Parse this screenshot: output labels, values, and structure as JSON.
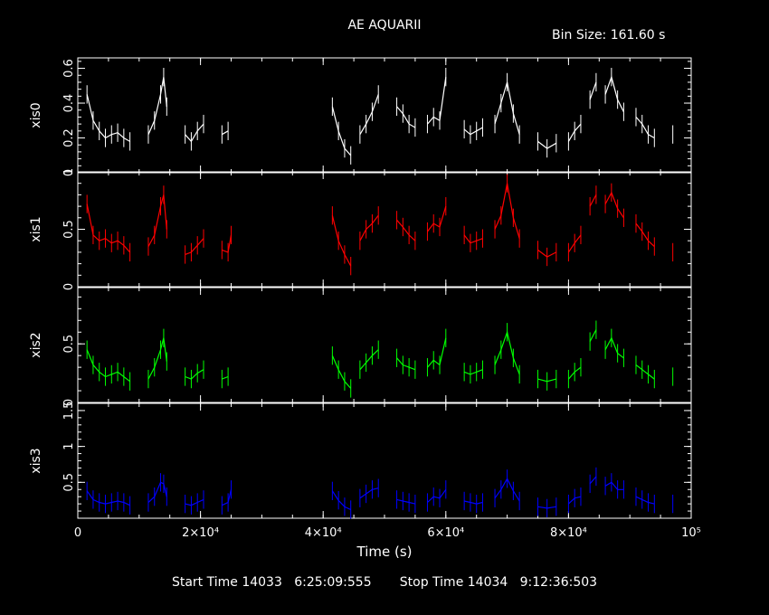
{
  "header": {
    "title": "AE AQUARII",
    "bin_size": "Bin Size: 161.60 s"
  },
  "footer": {
    "start_label": "Start Time",
    "start_value": "14033   6:25:09:555",
    "stop_label": "Stop Time",
    "stop_value": "14034   9:12:36:503"
  },
  "chart_data": {
    "type": "line",
    "title": "AE AQUARII",
    "xlabel": "Time (s)",
    "xlim": [
      0,
      100000
    ],
    "x_ticks": [
      0,
      20000,
      40000,
      60000,
      80000,
      100000
    ],
    "x_tick_labels": [
      "0",
      "2×10⁴",
      "4×10⁴",
      "6×10⁴",
      "8×10⁴",
      "10⁵"
    ],
    "grid": false,
    "panels": [
      {
        "name": "xis0",
        "color": "#ffffff",
        "ylim": [
          0,
          0.66
        ],
        "y_ticks": [
          0,
          0.2,
          0.4,
          0.6
        ],
        "y_tick_labels": [
          "0",
          "0.2",
          "0.4",
          "0.6"
        ],
        "segments": [
          {
            "x": [
              1500,
              2500,
              3500,
              4500,
              5500,
              6500,
              7500,
              8500
            ],
            "y": [
              0.45,
              0.3,
              0.24,
              0.2,
              0.22,
              0.23,
              0.2,
              0.18
            ]
          },
          {
            "x": [
              11500,
              12500,
              13500,
              14000,
              14500
            ],
            "y": [
              0.22,
              0.3,
              0.45,
              0.55,
              0.38
            ]
          },
          {
            "x": [
              17500,
              18500,
              19500,
              20500
            ],
            "y": [
              0.22,
              0.18,
              0.24,
              0.28
            ]
          },
          {
            "x": [
              23500,
              24500
            ],
            "y": [
              0.22,
              0.24
            ]
          },
          {
            "x": [
              41500,
              42500,
              43500,
              44500
            ],
            "y": [
              0.38,
              0.24,
              0.14,
              0.1
            ]
          },
          {
            "x": [
              46000,
              47000,
              48000,
              49000
            ],
            "y": [
              0.22,
              0.28,
              0.35,
              0.45
            ]
          },
          {
            "x": [
              52000,
              53000,
              54000,
              55000
            ],
            "y": [
              0.38,
              0.34,
              0.28,
              0.26
            ]
          },
          {
            "x": [
              57000,
              58000,
              59000,
              60000
            ],
            "y": [
              0.28,
              0.32,
              0.3,
              0.55
            ]
          },
          {
            "x": [
              63000,
              64000,
              65000,
              66000
            ],
            "y": [
              0.25,
              0.22,
              0.24,
              0.26
            ]
          },
          {
            "x": [
              68000,
              69000,
              70000,
              71000,
              72000
            ],
            "y": [
              0.28,
              0.4,
              0.52,
              0.34,
              0.22
            ]
          },
          {
            "x": [
              75000,
              76500,
              78000
            ],
            "y": [
              0.18,
              0.14,
              0.17
            ]
          },
          {
            "x": [
              80000,
              81000,
              82000
            ],
            "y": [
              0.18,
              0.24,
              0.28
            ]
          },
          {
            "x": [
              83500,
              84500
            ],
            "y": [
              0.42,
              0.52
            ]
          },
          {
            "x": [
              86000,
              87000,
              88000,
              89000
            ],
            "y": [
              0.45,
              0.55,
              0.42,
              0.35
            ]
          },
          {
            "x": [
              91000,
              92000,
              93000,
              94000
            ],
            "y": [
              0.32,
              0.28,
              0.22,
              0.2
            ]
          },
          {
            "x": [
              97000
            ],
            "y": [
              0.22
            ]
          }
        ]
      },
      {
        "name": "xis1",
        "color": "#ff0000",
        "ylim": [
          0,
          1.0
        ],
        "y_ticks": [
          0,
          0.5,
          1
        ],
        "y_tick_labels": [
          "0",
          "0.5",
          "1"
        ],
        "segments": [
          {
            "x": [
              1500,
              2500,
              3500,
              4500,
              5500,
              6500,
              7500,
              8500
            ],
            "y": [
              0.72,
              0.45,
              0.4,
              0.42,
              0.38,
              0.4,
              0.36,
              0.3
            ]
          },
          {
            "x": [
              11500,
              12500,
              13500,
              14000,
              14500
            ],
            "y": [
              0.35,
              0.45,
              0.7,
              0.8,
              0.5
            ]
          },
          {
            "x": [
              17500,
              18500,
              19500,
              20500
            ],
            "y": [
              0.28,
              0.3,
              0.36,
              0.42
            ]
          },
          {
            "x": [
              23500,
              24500,
              25000
            ],
            "y": [
              0.32,
              0.3,
              0.45
            ]
          },
          {
            "x": [
              41500,
              42500,
              43500,
              44500
            ],
            "y": [
              0.62,
              0.4,
              0.28,
              0.18
            ]
          },
          {
            "x": [
              46000,
              47000,
              48000,
              49000
            ],
            "y": [
              0.4,
              0.5,
              0.55,
              0.62
            ]
          },
          {
            "x": [
              52000,
              53000,
              54000,
              55000
            ],
            "y": [
              0.58,
              0.52,
              0.45,
              0.4
            ]
          },
          {
            "x": [
              57000,
              58000,
              59000,
              60000
            ],
            "y": [
              0.48,
              0.55,
              0.52,
              0.7
            ]
          },
          {
            "x": [
              63000,
              64000,
              65000,
              66000
            ],
            "y": [
              0.45,
              0.38,
              0.4,
              0.42
            ]
          },
          {
            "x": [
              68000,
              69000,
              70000,
              71000,
              72000
            ],
            "y": [
              0.5,
              0.62,
              0.9,
              0.6,
              0.42
            ]
          },
          {
            "x": [
              75000,
              76500,
              78000
            ],
            "y": [
              0.32,
              0.26,
              0.3
            ]
          },
          {
            "x": [
              80000,
              81000,
              82000
            ],
            "y": [
              0.3,
              0.38,
              0.45
            ]
          },
          {
            "x": [
              83500,
              84500
            ],
            "y": [
              0.7,
              0.8
            ]
          },
          {
            "x": [
              86000,
              87000,
              88000,
              89000
            ],
            "y": [
              0.72,
              0.82,
              0.68,
              0.6
            ]
          },
          {
            "x": [
              91000,
              92000,
              93000,
              94000
            ],
            "y": [
              0.55,
              0.48,
              0.4,
              0.35
            ]
          },
          {
            "x": [
              97000
            ],
            "y": [
              0.3
            ]
          }
        ]
      },
      {
        "name": "xis2",
        "color": "#00ff00",
        "ylim": [
          0,
          0.98
        ],
        "y_ticks": [
          0,
          0.5
        ],
        "y_tick_labels": [
          "0",
          "0.5"
        ],
        "segments": [
          {
            "x": [
              1500,
              2500,
              3500,
              4500,
              5500,
              6500,
              7500,
              8500
            ],
            "y": [
              0.45,
              0.32,
              0.26,
              0.22,
              0.24,
              0.26,
              0.22,
              0.18
            ]
          },
          {
            "x": [
              11500,
              12500,
              13500,
              14000,
              14500
            ],
            "y": [
              0.2,
              0.3,
              0.45,
              0.55,
              0.35
            ]
          },
          {
            "x": [
              17500,
              18500,
              19500,
              20500
            ],
            "y": [
              0.22,
              0.2,
              0.25,
              0.28
            ]
          },
          {
            "x": [
              23500,
              24500
            ],
            "y": [
              0.2,
              0.22
            ]
          },
          {
            "x": [
              41500,
              42500,
              43500,
              44500
            ],
            "y": [
              0.4,
              0.28,
              0.18,
              0.12
            ]
          },
          {
            "x": [
              46000,
              47000,
              48000,
              49000
            ],
            "y": [
              0.28,
              0.34,
              0.4,
              0.45
            ]
          },
          {
            "x": [
              52000,
              53000,
              54000,
              55000
            ],
            "y": [
              0.38,
              0.32,
              0.3,
              0.28
            ]
          },
          {
            "x": [
              57000,
              58000,
              59000,
              60000
            ],
            "y": [
              0.3,
              0.36,
              0.32,
              0.55
            ]
          },
          {
            "x": [
              63000,
              64000,
              65000,
              66000
            ],
            "y": [
              0.26,
              0.24,
              0.26,
              0.28
            ]
          },
          {
            "x": [
              68000,
              69000,
              70000,
              71000,
              72000
            ],
            "y": [
              0.32,
              0.45,
              0.6,
              0.38,
              0.24
            ]
          },
          {
            "x": [
              75000,
              76500,
              78000
            ],
            "y": [
              0.2,
              0.18,
              0.2
            ]
          },
          {
            "x": [
              80000,
              81000,
              82000
            ],
            "y": [
              0.2,
              0.26,
              0.3
            ]
          },
          {
            "x": [
              83500,
              84500
            ],
            "y": [
              0.52,
              0.62
            ]
          },
          {
            "x": [
              86000,
              87000,
              88000,
              89000
            ],
            "y": [
              0.45,
              0.55,
              0.42,
              0.38
            ]
          },
          {
            "x": [
              91000,
              92000,
              93000,
              94000
            ],
            "y": [
              0.32,
              0.28,
              0.24,
              0.2
            ]
          },
          {
            "x": [
              97000
            ],
            "y": [
              0.22
            ]
          }
        ]
      },
      {
        "name": "xis3",
        "color": "#0000ff",
        "ylim": [
          0,
          1.6
        ],
        "y_ticks": [
          0.5,
          1,
          1.5
        ],
        "y_tick_labels": [
          "0.5",
          "1",
          "1.5"
        ],
        "segments": [
          {
            "x": [
              1500,
              2500,
              3500,
              4500,
              5500,
              6500,
              7500,
              8500
            ],
            "y": [
              0.38,
              0.26,
              0.22,
              0.2,
              0.22,
              0.24,
              0.22,
              0.18
            ]
          },
          {
            "x": [
              11500,
              12500,
              13500,
              14000,
              14500
            ],
            "y": [
              0.22,
              0.3,
              0.5,
              0.48,
              0.3
            ]
          },
          {
            "x": [
              17500,
              18500,
              19500,
              20500
            ],
            "y": [
              0.2,
              0.18,
              0.22,
              0.26
            ]
          },
          {
            "x": [
              23500,
              24500,
              25000
            ],
            "y": [
              0.18,
              0.22,
              0.4
            ]
          },
          {
            "x": [
              41500,
              42500,
              43500,
              44500
            ],
            "y": [
              0.38,
              0.25,
              0.16,
              0.12
            ]
          },
          {
            "x": [
              46000,
              47000,
              48000,
              49000
            ],
            "y": [
              0.28,
              0.34,
              0.4,
              0.42
            ]
          },
          {
            "x": [
              52000,
              53000,
              54000,
              55000
            ],
            "y": [
              0.26,
              0.24,
              0.22,
              0.2
            ]
          },
          {
            "x": [
              57000,
              58000,
              59000,
              60000
            ],
            "y": [
              0.22,
              0.3,
              0.28,
              0.4
            ]
          },
          {
            "x": [
              63000,
              64000,
              65000,
              66000
            ],
            "y": [
              0.24,
              0.22,
              0.2,
              0.22
            ]
          },
          {
            "x": [
              68000,
              69000,
              70000,
              71000,
              72000
            ],
            "y": [
              0.28,
              0.4,
              0.55,
              0.38,
              0.24
            ]
          },
          {
            "x": [
              75000,
              76500,
              78000
            ],
            "y": [
              0.16,
              0.14,
              0.16
            ]
          },
          {
            "x": [
              80000,
              81000,
              82000
            ],
            "y": [
              0.2,
              0.28,
              0.3
            ]
          },
          {
            "x": [
              83500,
              84500
            ],
            "y": [
              0.48,
              0.58
            ]
          },
          {
            "x": [
              86000,
              87000,
              88000,
              89000
            ],
            "y": [
              0.45,
              0.5,
              0.4,
              0.4
            ]
          },
          {
            "x": [
              91000,
              92000,
              93000,
              94000
            ],
            "y": [
              0.3,
              0.26,
              0.22,
              0.2
            ]
          },
          {
            "x": [
              97000
            ],
            "y": [
              0.2
            ]
          }
        ]
      }
    ]
  }
}
